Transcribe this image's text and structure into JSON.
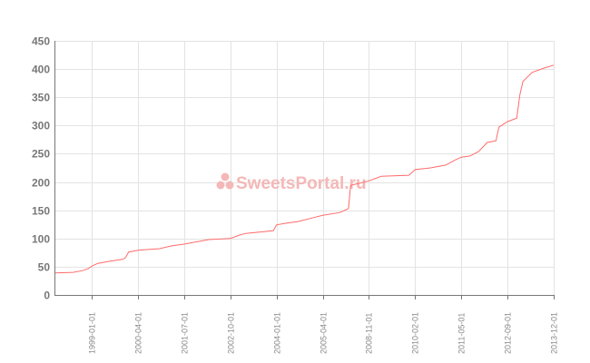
{
  "chart_data": {
    "type": "line",
    "title": "",
    "xlabel": "",
    "ylabel": "",
    "ylim": [
      0,
      450
    ],
    "yticks": [
      0,
      50,
      100,
      150,
      200,
      250,
      300,
      350,
      400,
      450
    ],
    "xtick_labels": [
      "1999-01-01",
      "2000-04-01",
      "2001-07-01",
      "2002-10-01",
      "2004-01-01",
      "2005-04-01",
      "2008-11-01",
      "2010-02-01",
      "2011-05-01",
      "2012-09-01",
      "2013-12-01"
    ],
    "grid": true,
    "line_color": "#ff6b6b",
    "watermark": "SweetsPortal.ru",
    "points": [
      [
        "1998-01",
        39
      ],
      [
        "1998-07",
        40
      ],
      [
        "1998-10",
        43
      ],
      [
        "1998-12",
        47
      ],
      [
        "1999-01",
        51
      ],
      [
        "1999-03",
        56
      ],
      [
        "1999-07",
        60
      ],
      [
        "1999-11",
        63
      ],
      [
        "1999-12",
        66
      ],
      [
        "2000-01",
        76
      ],
      [
        "2000-04",
        79
      ],
      [
        "2000-11",
        82
      ],
      [
        "2001-03",
        87
      ],
      [
        "2001-07",
        90
      ],
      [
        "2001-12",
        95
      ],
      [
        "2002-03",
        98
      ],
      [
        "2002-10",
        100
      ],
      [
        "2003-01",
        106
      ],
      [
        "2003-03",
        109
      ],
      [
        "2003-09",
        112
      ],
      [
        "2003-12",
        114
      ],
      [
        "2004-01",
        124
      ],
      [
        "2004-04",
        127
      ],
      [
        "2004-08",
        130
      ],
      [
        "2005-01",
        137
      ],
      [
        "2005-04",
        141
      ],
      [
        "2006-08",
        146
      ],
      [
        "2007-04",
        153
      ],
      [
        "2007-06",
        194
      ],
      [
        "2008-05",
        199
      ],
      [
        "2008-11",
        202
      ],
      [
        "2009-03",
        210
      ],
      [
        "2009-12",
        212
      ],
      [
        "2010-02",
        222
      ],
      [
        "2010-07",
        225
      ],
      [
        "2010-12",
        230
      ],
      [
        "2011-03",
        239
      ],
      [
        "2011-05",
        244
      ],
      [
        "2011-08",
        246
      ],
      [
        "2011-11",
        254
      ],
      [
        "2012-02",
        270
      ],
      [
        "2012-05",
        273
      ],
      [
        "2012-06",
        297
      ],
      [
        "2012-09",
        307
      ],
      [
        "2012-12",
        313
      ],
      [
        "2013-01",
        354
      ],
      [
        "2013-02",
        378
      ],
      [
        "2013-05",
        394
      ],
      [
        "2013-09",
        402
      ],
      [
        "2013-12",
        407
      ]
    ]
  }
}
